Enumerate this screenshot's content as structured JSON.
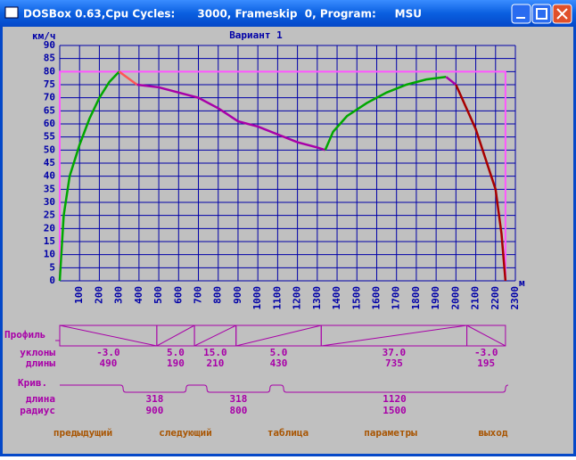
{
  "window": {
    "title": "DOSBox 0.63,Cpu Cycles:      3000, Frameskip  0, Program:     MSU"
  },
  "chart_data": {
    "type": "line",
    "title": "Вариант 1",
    "y_label": "км/ч",
    "x_label": "м",
    "xlim": [
      0,
      2300
    ],
    "ylim": [
      0,
      90
    ],
    "xticks": [
      100,
      200,
      300,
      400,
      500,
      600,
      700,
      800,
      900,
      1000,
      1100,
      1200,
      1300,
      1400,
      1500,
      1600,
      1700,
      1800,
      1900,
      2000,
      2100,
      2200,
      2300
    ],
    "yticks": [
      0,
      5,
      10,
      15,
      20,
      25,
      30,
      35,
      40,
      45,
      50,
      55,
      60,
      65,
      70,
      75,
      80,
      85,
      90
    ],
    "grid": true,
    "grid_color": "#0000a8",
    "limit": {
      "speed": 80,
      "start": 0,
      "end": 2250,
      "color": "#ff55ff"
    },
    "series": [
      {
        "color": "#00a800",
        "x": [
          0,
          20,
          50,
          100,
          150,
          200,
          250,
          300
        ],
        "values": [
          0,
          25,
          40,
          52,
          62,
          70,
          76,
          80
        ]
      },
      {
        "color": "#ff5555",
        "x": [
          300,
          390
        ],
        "values": [
          80,
          75
        ]
      },
      {
        "color": "#a800a8",
        "x": [
          390,
          500,
          600,
          700,
          800,
          900,
          1000,
          1100,
          1200,
          1300,
          1340
        ],
        "values": [
          75,
          74,
          72,
          70,
          66,
          61,
          59,
          56,
          53,
          51,
          50
        ]
      },
      {
        "color": "#00a800",
        "x": [
          1340,
          1380,
          1450,
          1550,
          1650,
          1750,
          1850,
          1950
        ],
        "values": [
          50,
          57,
          63,
          68,
          72,
          75,
          77,
          78
        ]
      },
      {
        "color": "#a800a8",
        "x": [
          1950,
          2000
        ],
        "values": [
          78,
          75
        ]
      },
      {
        "color": "#a80000",
        "x": [
          2000,
          2100,
          2200,
          2230,
          2250
        ],
        "values": [
          75,
          58,
          35,
          18,
          0
        ]
      }
    ]
  },
  "profile": {
    "label": "Профиль",
    "grade_label": "уклоны",
    "length_label": "длины",
    "grades": [
      "-3.0",
      "5.0",
      "15.0",
      "5.0",
      "37.0",
      "-3.0"
    ],
    "lengths": [
      490,
      190,
      210,
      430,
      735,
      195
    ]
  },
  "curves": {
    "label": "Крив.",
    "length_label": "длина",
    "radius_label": "радиус",
    "lengths": [
      318,
      318,
      1120
    ],
    "radii": [
      900,
      800,
      1500
    ]
  },
  "menu": [
    "предыдущий",
    "следующий",
    "таблица",
    "параметры",
    "выход"
  ]
}
